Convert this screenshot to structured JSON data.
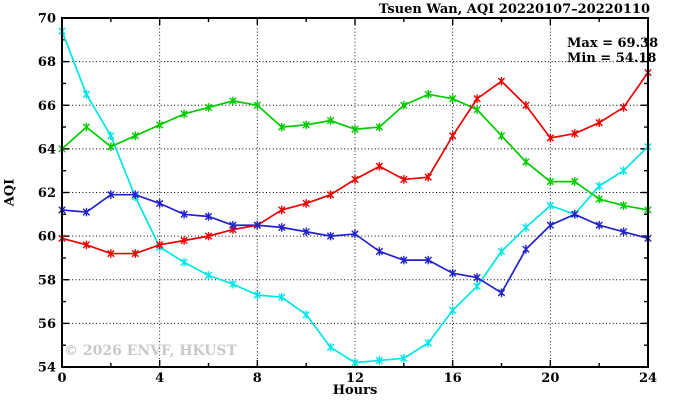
{
  "page": {
    "title": "Tsuen Wan, AQI 20220107–20220110",
    "watermark": "© 2026 ENVF, HKUST"
  },
  "chart_data": {
    "type": "line",
    "title": "Tsuen Wan, AQI 20220107–20220110",
    "annotations": [
      "Max = 69.38",
      "Min = 54.18"
    ],
    "stats": {
      "max": 69.38,
      "min": 54.18
    },
    "xlabel": "Hours",
    "ylabel": "AQI",
    "xlim": [
      0,
      24
    ],
    "ylim": [
      54,
      70
    ],
    "x_major_ticks": [
      0,
      4,
      8,
      12,
      16,
      20,
      24
    ],
    "x_minor_step": 2,
    "y_major_step": 2,
    "y_minor_step": 1,
    "grid": "dotted",
    "legend_position": "none",
    "frame_color": "#000000",
    "x": [
      0,
      1,
      2,
      3,
      4,
      5,
      6,
      7,
      8,
      9,
      10,
      11,
      12,
      13,
      14,
      15,
      16,
      17,
      18,
      19,
      20,
      21,
      22,
      23,
      24
    ],
    "series": [
      {
        "name": "series-cyan",
        "color": "#00e6e6",
        "values": [
          69.4,
          66.5,
          64.6,
          61.8,
          59.5,
          58.8,
          58.2,
          57.8,
          57.3,
          57.2,
          56.4,
          54.9,
          54.2,
          54.3,
          54.4,
          55.1,
          56.6,
          57.7,
          59.3,
          60.4,
          61.4,
          61.0,
          62.3,
          63.0,
          64.1
        ]
      },
      {
        "name": "series-green",
        "color": "#00cc00",
        "values": [
          64.0,
          65.0,
          64.1,
          64.6,
          65.1,
          65.6,
          65.9,
          66.2,
          66.0,
          65.0,
          65.1,
          65.3,
          64.9,
          65.0,
          66.0,
          66.5,
          66.3,
          65.8,
          64.6,
          63.4,
          62.5,
          62.5,
          61.7,
          61.4,
          61.2
        ]
      },
      {
        "name": "series-red",
        "color": "#ee0000",
        "values": [
          59.9,
          59.6,
          59.2,
          59.2,
          59.6,
          59.8,
          60.0,
          60.3,
          60.5,
          61.2,
          61.5,
          61.9,
          62.6,
          63.2,
          62.6,
          62.7,
          64.6,
          66.3,
          67.1,
          66.0,
          64.5,
          64.7,
          65.2,
          65.9,
          67.5
        ]
      },
      {
        "name": "series-blue",
        "color": "#2222cc",
        "values": [
          61.2,
          61.1,
          61.9,
          61.9,
          61.5,
          61.0,
          60.9,
          60.5,
          60.5,
          60.4,
          60.2,
          60.0,
          60.1,
          59.3,
          58.9,
          58.9,
          58.3,
          58.1,
          57.4,
          59.4,
          60.5,
          61.0,
          60.5,
          60.2,
          59.9
        ]
      }
    ]
  }
}
